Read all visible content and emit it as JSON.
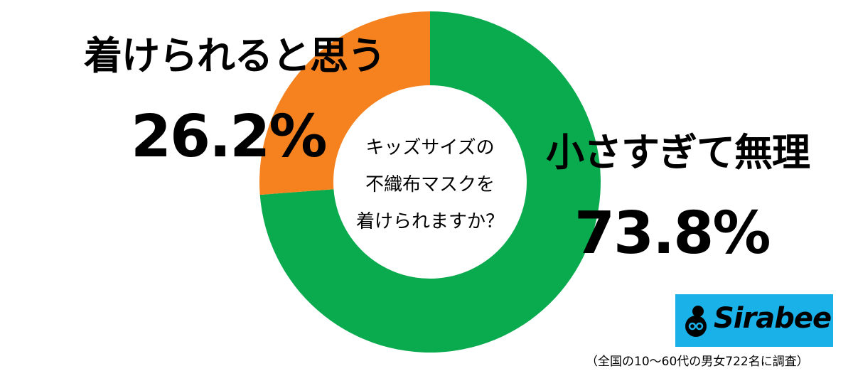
{
  "chart_data": {
    "type": "pie",
    "style": "donut",
    "title": "キッズサイズの不織布マスクを着けられますか？",
    "title_lines": [
      "キッズサイズの",
      "不織布マスクを",
      "着けられますか？"
    ],
    "slices": [
      {
        "label": "着けられると思う",
        "value": 26.2,
        "value_text": "26.2%",
        "color": "#f5821f"
      },
      {
        "label": "小さすぎて無理",
        "value": 73.8,
        "value_text": "73.8%",
        "color": "#0aab4f"
      }
    ],
    "legend": "none",
    "grid": false
  },
  "logo": {
    "name": "Sirabee",
    "background_color": "#1ab0e8",
    "icon": "sirabee-logo-icon"
  },
  "footnote": "（全国の10〜60代の男女722名に調査）"
}
